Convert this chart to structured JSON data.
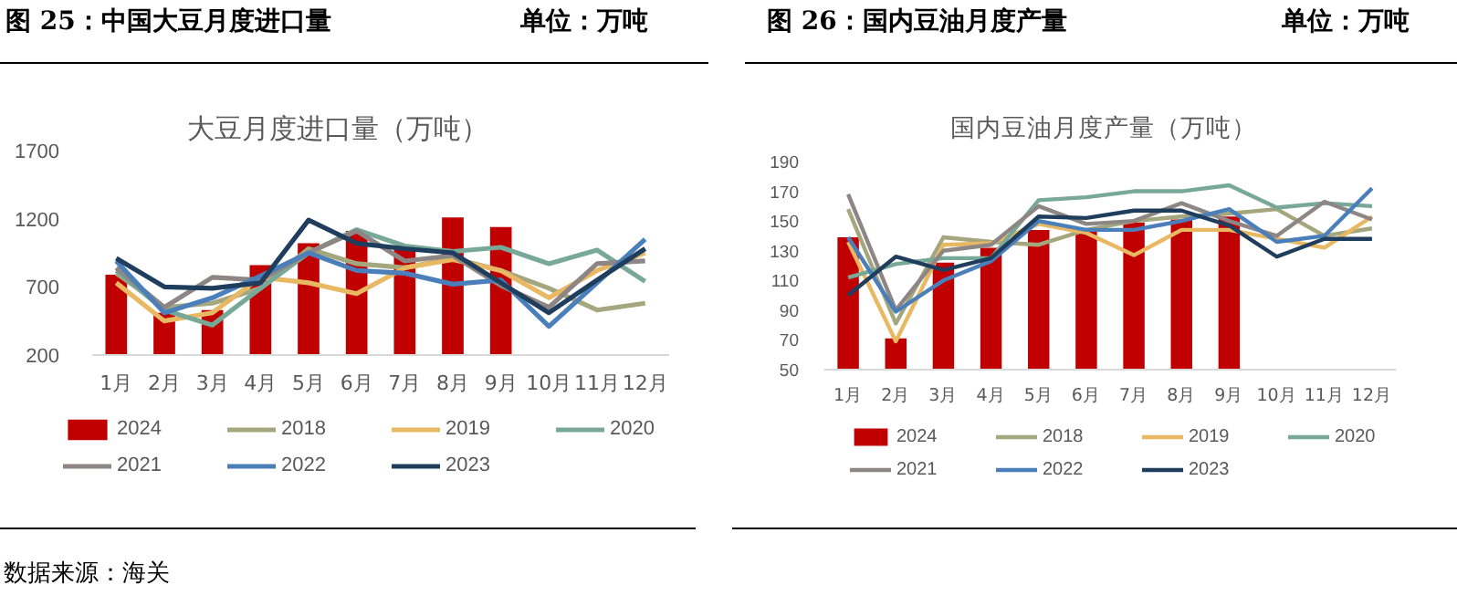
{
  "chart_data": [
    {
      "type": "bar",
      "title": "图 25：中国大豆月度进口量",
      "subtitle": "大豆月度进口量（万吨）",
      "annotations": [
        "单位：万吨",
        "数据来源：海关"
      ],
      "categories": [
        "1月",
        "2月",
        "3月",
        "4月",
        "5月",
        "6月",
        "7月",
        "8月",
        "9月",
        "10月",
        "11月",
        "12月"
      ],
      "ylim": [
        200,
        1700
      ],
      "yticks": [
        200,
        700,
        1200,
        1700
      ],
      "grid": false,
      "legend": "bottom",
      "series": [
        {
          "name": "2024",
          "color": "#c00000",
          "values": [
            790,
            510,
            530,
            860,
            1020,
            1110,
            990,
            1210,
            1140,
            null,
            null,
            null
          ]
        },
        {
          "name": "2018",
          "type": "line",
          "color": "#a4a67e",
          "values": [
            800,
            550,
            580,
            690,
            980,
            870,
            840,
            910,
            820,
            690,
            530,
            580
          ]
        },
        {
          "name": "2019",
          "type": "line",
          "color": "#e8b862",
          "values": [
            730,
            450,
            510,
            770,
            730,
            650,
            840,
            900,
            820,
            620,
            820,
            950
          ]
        },
        {
          "name": "2020",
          "type": "line",
          "color": "#78a898",
          "values": [
            820,
            530,
            420,
            690,
            950,
            1120,
            1000,
            960,
            990,
            870,
            970,
            740
          ]
        },
        {
          "name": "2021",
          "type": "line",
          "color": "#8e8585",
          "values": [
            840,
            550,
            770,
            750,
            950,
            1110,
            890,
            930,
            710,
            550,
            870,
            890
          ]
        },
        {
          "name": "2022",
          "type": "line",
          "color": "#4a7fba",
          "values": [
            890,
            510,
            620,
            780,
            950,
            820,
            800,
            720,
            750,
            410,
            730,
            1050
          ]
        },
        {
          "name": "2023",
          "type": "line",
          "color": "#1f3d5c",
          "values": [
            910,
            700,
            690,
            730,
            1190,
            1020,
            980,
            950,
            730,
            510,
            750,
            980
          ]
        }
      ]
    },
    {
      "type": "bar",
      "title": "图 26：国内豆油月度产量",
      "subtitle": "国内豆油月度产量（万吨）",
      "annotations": [
        "单位：万吨"
      ],
      "categories": [
        "1月",
        "2月",
        "3月",
        "4月",
        "5月",
        "6月",
        "7月",
        "8月",
        "9月",
        "10月",
        "11月",
        "12月"
      ],
      "ylim": [
        50,
        190
      ],
      "yticks": [
        50,
        70,
        90,
        110,
        130,
        150,
        170,
        190
      ],
      "grid": false,
      "legend": "bottom",
      "series": [
        {
          "name": "2024",
          "color": "#c00000",
          "values": [
            139,
            71,
            122,
            132,
            144,
            143,
            149,
            151,
            153,
            null,
            null,
            null
          ]
        },
        {
          "name": "2018",
          "type": "line",
          "color": "#a4a67e",
          "values": [
            158,
            81,
            139,
            136,
            134,
            144,
            150,
            153,
            155,
            158,
            140,
            145
          ]
        },
        {
          "name": "2019",
          "type": "line",
          "color": "#e8b862",
          "values": [
            136,
            69,
            134,
            135,
            148,
            142,
            127,
            144,
            144,
            138,
            132,
            153
          ]
        },
        {
          "name": "2020",
          "type": "line",
          "color": "#78a898",
          "values": [
            112,
            121,
            125,
            125,
            164,
            166,
            170,
            170,
            174,
            159,
            162,
            160
          ]
        },
        {
          "name": "2021",
          "type": "line",
          "color": "#8e8585",
          "values": [
            168,
            90,
            130,
            134,
            160,
            148,
            150,
            162,
            150,
            140,
            163,
            151
          ]
        },
        {
          "name": "2022",
          "type": "line",
          "color": "#4a7fba",
          "values": [
            139,
            89,
            110,
            123,
            150,
            144,
            144,
            150,
            158,
            136,
            140,
            172
          ]
        },
        {
          "name": "2023",
          "type": "line",
          "color": "#1f3d5c",
          "values": [
            100,
            126,
            117,
            125,
            153,
            152,
            157,
            157,
            147,
            126,
            138,
            138
          ]
        }
      ]
    }
  ]
}
